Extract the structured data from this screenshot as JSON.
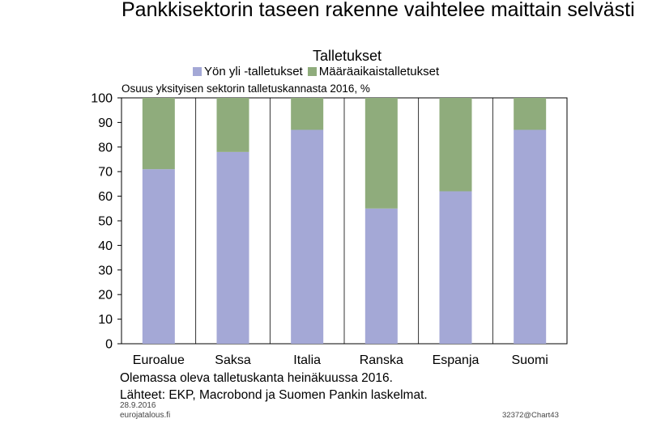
{
  "title": "Pankkisektorin taseen rakenne vaihtelee maittain selvästi",
  "footer": {
    "note": "Olemassa oleva talletuskanta heinäkuussa 2016.",
    "sources": "Lähteet: EKP, Macrobond ja Suomen Pankin laskelmat.",
    "date": "28.9.2016",
    "site": "eurojatalous.fi",
    "code": "32372@Chart43"
  },
  "chart_data": {
    "type": "bar",
    "stacked": true,
    "title": "Talletukset",
    "subtitle": "Osuus yksityisen sektorin talletuskannasta 2016, %",
    "categories": [
      "Euroalue",
      "Saksa",
      "Italia",
      "Ranska",
      "Espanja",
      "Suomi"
    ],
    "series": [
      {
        "name": "Yön yli -talletukset",
        "color": "#a4a8d6",
        "values": [
          71,
          78,
          87,
          55,
          62,
          87
        ]
      },
      {
        "name": "Määräaikaistalletukset",
        "color": "#8fac7c",
        "values": [
          29,
          22,
          13,
          45,
          38,
          13
        ]
      }
    ],
    "ylim": [
      0,
      100
    ],
    "yticks": [
      0,
      10,
      20,
      30,
      40,
      50,
      60,
      70,
      80,
      90,
      100
    ],
    "grid": true,
    "legend_position": "top"
  }
}
